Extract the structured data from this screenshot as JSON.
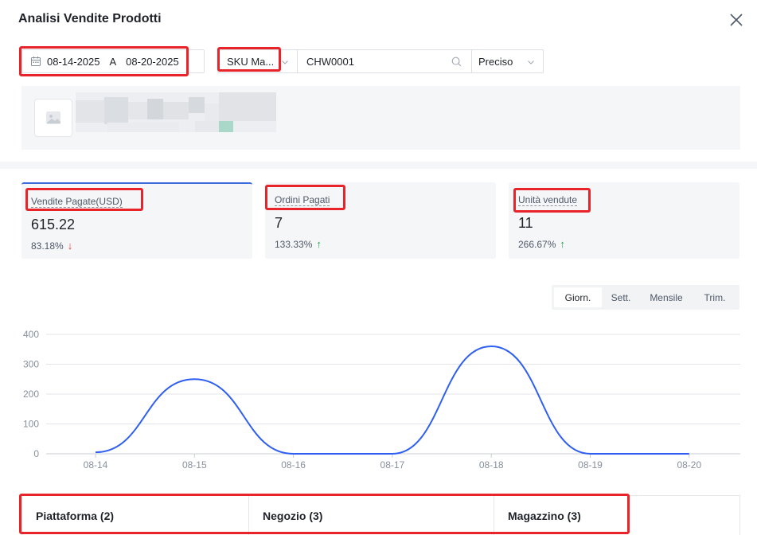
{
  "header": {
    "title": "Analisi Vendite Prodotti"
  },
  "icons": {
    "close": "close-icon",
    "calendar": "calendar-icon",
    "search": "search-icon",
    "chevron": "chevron-down-icon",
    "image_placeholder": "image-placeholder-icon"
  },
  "filters": {
    "date_start": "08-14-2025",
    "date_separator": "A",
    "date_end": "08-20-2025",
    "sku_select": "SKU Ma...",
    "sku_value": "CHW0001",
    "match_mode": "Preciso"
  },
  "metrics": [
    {
      "label": "Vendite Pagate(USD)",
      "value": "615.22",
      "change": "83.18%",
      "direction": "down"
    },
    {
      "label": "Ordini Pagati",
      "value": "7",
      "change": "133.33%",
      "direction": "up"
    },
    {
      "label": "Unità vendute",
      "value": "11",
      "change": "266.67%",
      "direction": "up"
    }
  ],
  "period_tabs": [
    {
      "label": "Giorn.",
      "active": true
    },
    {
      "label": "Sett.",
      "active": false
    },
    {
      "label": "Mensile",
      "active": false
    },
    {
      "label": "Trim.",
      "active": false
    }
  ],
  "chart_data": {
    "type": "line",
    "categories": [
      "08-14",
      "08-15",
      "08-16",
      "08-17",
      "08-18",
      "08-19",
      "08-20"
    ],
    "series": [
      {
        "values": [
          5,
          250,
          0,
          0,
          360,
          0,
          0
        ],
        "color": "#2f5ff2"
      }
    ],
    "yticks": [
      0,
      100,
      200,
      300,
      400
    ],
    "ylim": [
      0,
      400
    ],
    "grid": true,
    "smooth": true
  },
  "bottom_tabs": [
    {
      "label": "Piattaforma (2)"
    },
    {
      "label": "Negozio (3)"
    },
    {
      "label": "Magazzino (3)"
    }
  ],
  "colors": {
    "accent": "#3b6bdf",
    "highlight": "#e8242a",
    "down": "#f03d3d",
    "up": "#22a355",
    "line": "#2f5ff2"
  }
}
